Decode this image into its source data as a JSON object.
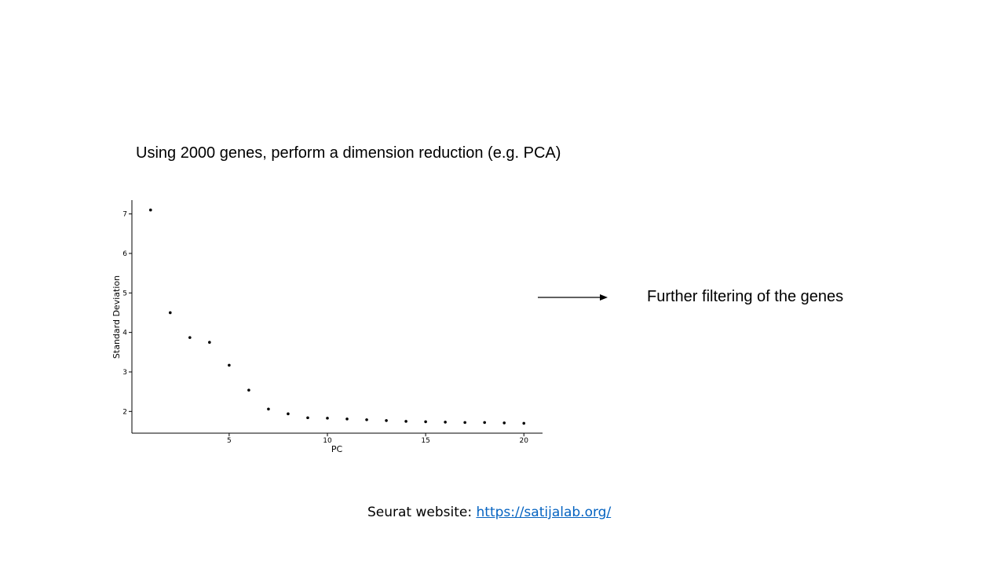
{
  "slide": {
    "title": "Using 2000 genes, perform a dimension reduction (e.g. PCA)",
    "side_note": "Further filtering of the genes",
    "footer_prefix": "Seurat website: ",
    "footer_link_text": "https://satijalab.org/",
    "footer_link_href": "https://satijalab.org/",
    "link_color": "#0563c1"
  },
  "chart_data": {
    "type": "scatter",
    "xlabel": "PC",
    "ylabel": "Standard Deviation",
    "x_ticks": [
      5,
      10,
      15,
      20
    ],
    "y_ticks": [
      2,
      3,
      4,
      5,
      6,
      7
    ],
    "xlim": [
      0.05,
      20.95
    ],
    "ylim": [
      1.45,
      7.35
    ],
    "grid": false,
    "point_color": "#000000",
    "x": [
      1,
      2,
      3,
      4,
      5,
      6,
      7,
      8,
      9,
      10,
      11,
      12,
      13,
      14,
      15,
      16,
      17,
      18,
      19,
      20
    ],
    "y": [
      7.1,
      4.5,
      3.87,
      3.75,
      3.17,
      2.54,
      2.06,
      1.94,
      1.84,
      1.83,
      1.81,
      1.79,
      1.77,
      1.75,
      1.74,
      1.73,
      1.72,
      1.72,
      1.71,
      1.7
    ]
  }
}
